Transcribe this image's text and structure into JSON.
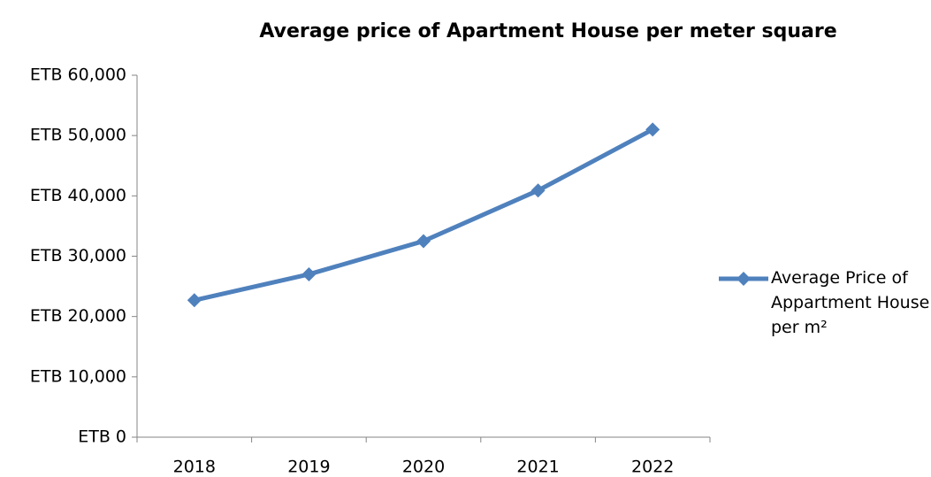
{
  "chart_data": {
    "type": "line",
    "title": "Average price of Apartment House per meter square",
    "categories": [
      "2018",
      "2019",
      "2020",
      "2021",
      "2022"
    ],
    "series": [
      {
        "name": "Average Price of Appartment House per m²",
        "color": "#4f81bd",
        "values": [
          22700,
          27000,
          32500,
          40900,
          51000
        ]
      }
    ],
    "ylim": [
      0,
      60000
    ],
    "yticks": [
      {
        "value": 0,
        "label": "ETB 0"
      },
      {
        "value": 10000,
        "label": "ETB 10,000"
      },
      {
        "value": 20000,
        "label": "ETB 20,000"
      },
      {
        "value": 30000,
        "label": "ETB 30,000"
      },
      {
        "value": 40000,
        "label": "ETB 40,000"
      },
      {
        "value": 50000,
        "label": "ETB 50,000"
      },
      {
        "value": 60000,
        "label": "ETB 60,000"
      }
    ],
    "grid": false,
    "legend": "right"
  }
}
